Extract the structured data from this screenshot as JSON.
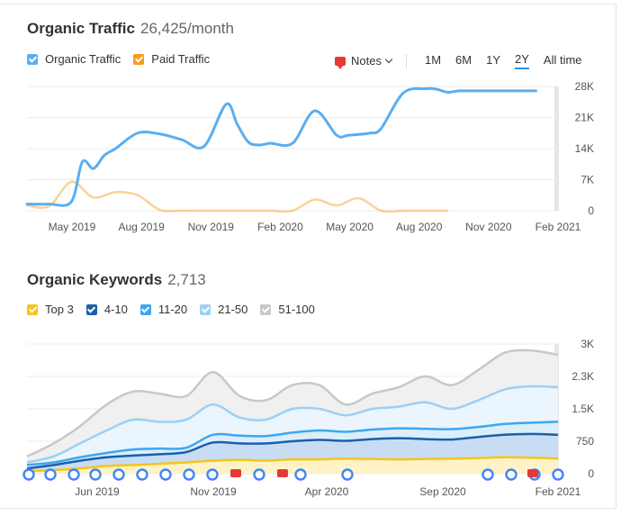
{
  "organic_traffic": {
    "title": "Organic Traffic",
    "value": "26,425/month",
    "legend": [
      {
        "label": "Organic Traffic",
        "color": "#5aaef0"
      },
      {
        "label": "Paid Traffic",
        "color": "#f59c1a"
      }
    ],
    "notes_label": "Notes",
    "ranges": [
      "1M",
      "6M",
      "1Y",
      "2Y",
      "All time"
    ],
    "active_range": "2Y"
  },
  "organic_keywords": {
    "title": "Organic Keywords",
    "value": "2,713",
    "legend": [
      {
        "label": "Top 3",
        "color": "#f5c518"
      },
      {
        "label": "4-10",
        "color": "#1a5fab"
      },
      {
        "label": "11-20",
        "color": "#3ea6ef"
      },
      {
        "label": "21-50",
        "color": "#9cd0f5"
      },
      {
        "label": "51-100",
        "color": "#c8c8c8"
      }
    ]
  },
  "chart_data": [
    {
      "type": "line",
      "title": "Organic Traffic",
      "x_tick_labels": [
        "May 2019",
        "Aug 2019",
        "Nov 2019",
        "Feb 2020",
        "May 2020",
        "Aug 2020",
        "Nov 2020",
        "Feb 2021"
      ],
      "y_tick_labels": [
        "28K",
        "21K",
        "14K",
        "7K",
        "0"
      ],
      "ylim": [
        0,
        28000
      ],
      "x_range_months": [
        0,
        24
      ],
      "series": [
        {
          "name": "Organic Traffic",
          "color": "#5aaef0",
          "x": [
            0,
            1,
            2,
            2.5,
            3,
            3.5,
            4,
            5,
            6,
            7,
            8,
            9,
            9.5,
            10,
            10.5,
            11,
            12,
            13,
            14,
            14.5,
            15,
            15.5,
            16,
            17,
            18,
            18.5,
            19,
            19.5,
            20,
            20.5,
            21,
            22,
            23
          ],
          "y": [
            1500,
            1500,
            2000,
            11000,
            9500,
            12500,
            14000,
            17500,
            17300,
            16000,
            14500,
            24000,
            19500,
            15500,
            14800,
            15200,
            15200,
            22500,
            17000,
            17000,
            17200,
            17500,
            18500,
            26500,
            27500,
            27400,
            26700,
            27000,
            27000,
            27000,
            27000,
            27000,
            27000
          ]
        },
        {
          "name": "Paid Traffic",
          "color": "#f59c1a",
          "x": [
            0,
            1,
            2,
            3,
            4,
            5,
            6,
            7,
            8,
            9,
            10,
            11,
            12,
            13,
            14,
            15,
            16,
            17,
            17.5,
            18,
            18.5,
            19
          ],
          "y": [
            1200,
            1000,
            6500,
            3000,
            4200,
            3500,
            200,
            0,
            0,
            0,
            0,
            0,
            0,
            2500,
            1200,
            2800,
            0,
            0,
            0,
            0,
            0,
            0
          ]
        }
      ]
    },
    {
      "type": "area",
      "title": "Organic Keywords",
      "stacked": true,
      "x_tick_labels": [
        "Jun 2019",
        "Nov 2019",
        "Apr 2020",
        "Sep 2020",
        "Feb 2021"
      ],
      "y_tick_labels": [
        "3K",
        "2.3K",
        "1.5K",
        "750",
        "0"
      ],
      "ylim": [
        0,
        3000
      ],
      "series": [
        {
          "name": "Top 3",
          "color": "#f5c518",
          "fill": "#fdf3c6",
          "x": [
            0,
            1,
            2,
            3,
            4,
            5,
            6,
            7,
            8,
            9,
            10,
            11,
            12,
            13,
            14,
            15,
            16,
            17,
            18,
            19,
            20
          ],
          "y": [
            60,
            80,
            120,
            180,
            200,
            230,
            260,
            300,
            320,
            300,
            330,
            330,
            350,
            340,
            330,
            340,
            350,
            360,
            380,
            370,
            350
          ]
        },
        {
          "name": "4-10",
          "color": "#1a5fab",
          "fill": "#c8ddf3",
          "x": [
            0,
            1,
            2,
            3,
            4,
            5,
            6,
            7,
            8,
            9,
            10,
            11,
            12,
            13,
            14,
            15,
            16,
            17,
            18,
            19,
            20
          ],
          "y": [
            120,
            200,
            300,
            380,
            420,
            450,
            500,
            720,
            700,
            700,
            750,
            780,
            760,
            800,
            820,
            800,
            790,
            850,
            900,
            920,
            900
          ]
        },
        {
          "name": "11-20",
          "color": "#3ea6ef",
          "fill": "#dbeefc",
          "x": [
            0,
            1,
            2,
            3,
            4,
            5,
            6,
            7,
            8,
            9,
            10,
            11,
            12,
            13,
            14,
            15,
            16,
            17,
            18,
            19,
            20
          ],
          "y": [
            200,
            260,
            380,
            480,
            560,
            580,
            600,
            900,
            880,
            870,
            950,
            1000,
            970,
            1020,
            1050,
            1040,
            1030,
            1080,
            1150,
            1180,
            1200
          ]
        },
        {
          "name": "21-50",
          "color": "#9cd0f5",
          "fill": "#eaf5fd",
          "x": [
            0,
            1,
            2,
            3,
            4,
            5,
            6,
            7,
            8,
            9,
            10,
            11,
            12,
            13,
            14,
            15,
            16,
            17,
            18,
            19,
            20
          ],
          "y": [
            260,
            400,
            700,
            1000,
            1250,
            1200,
            1250,
            1600,
            1300,
            1250,
            1500,
            1500,
            1350,
            1500,
            1550,
            1650,
            1500,
            1700,
            1950,
            2020,
            2000
          ]
        },
        {
          "name": "51-100",
          "color": "#c8c8c8",
          "fill": "#f0f0f0",
          "x": [
            0,
            1,
            2,
            3,
            4,
            5,
            6,
            7,
            8,
            9,
            10,
            11,
            12,
            13,
            14,
            15,
            16,
            17,
            18,
            19,
            20
          ],
          "y": [
            400,
            700,
            1100,
            1600,
            1900,
            1850,
            1800,
            2350,
            1800,
            1700,
            2050,
            2050,
            1600,
            1850,
            2000,
            2250,
            2050,
            2400,
            2800,
            2850,
            2750
          ]
        }
      ]
    }
  ]
}
